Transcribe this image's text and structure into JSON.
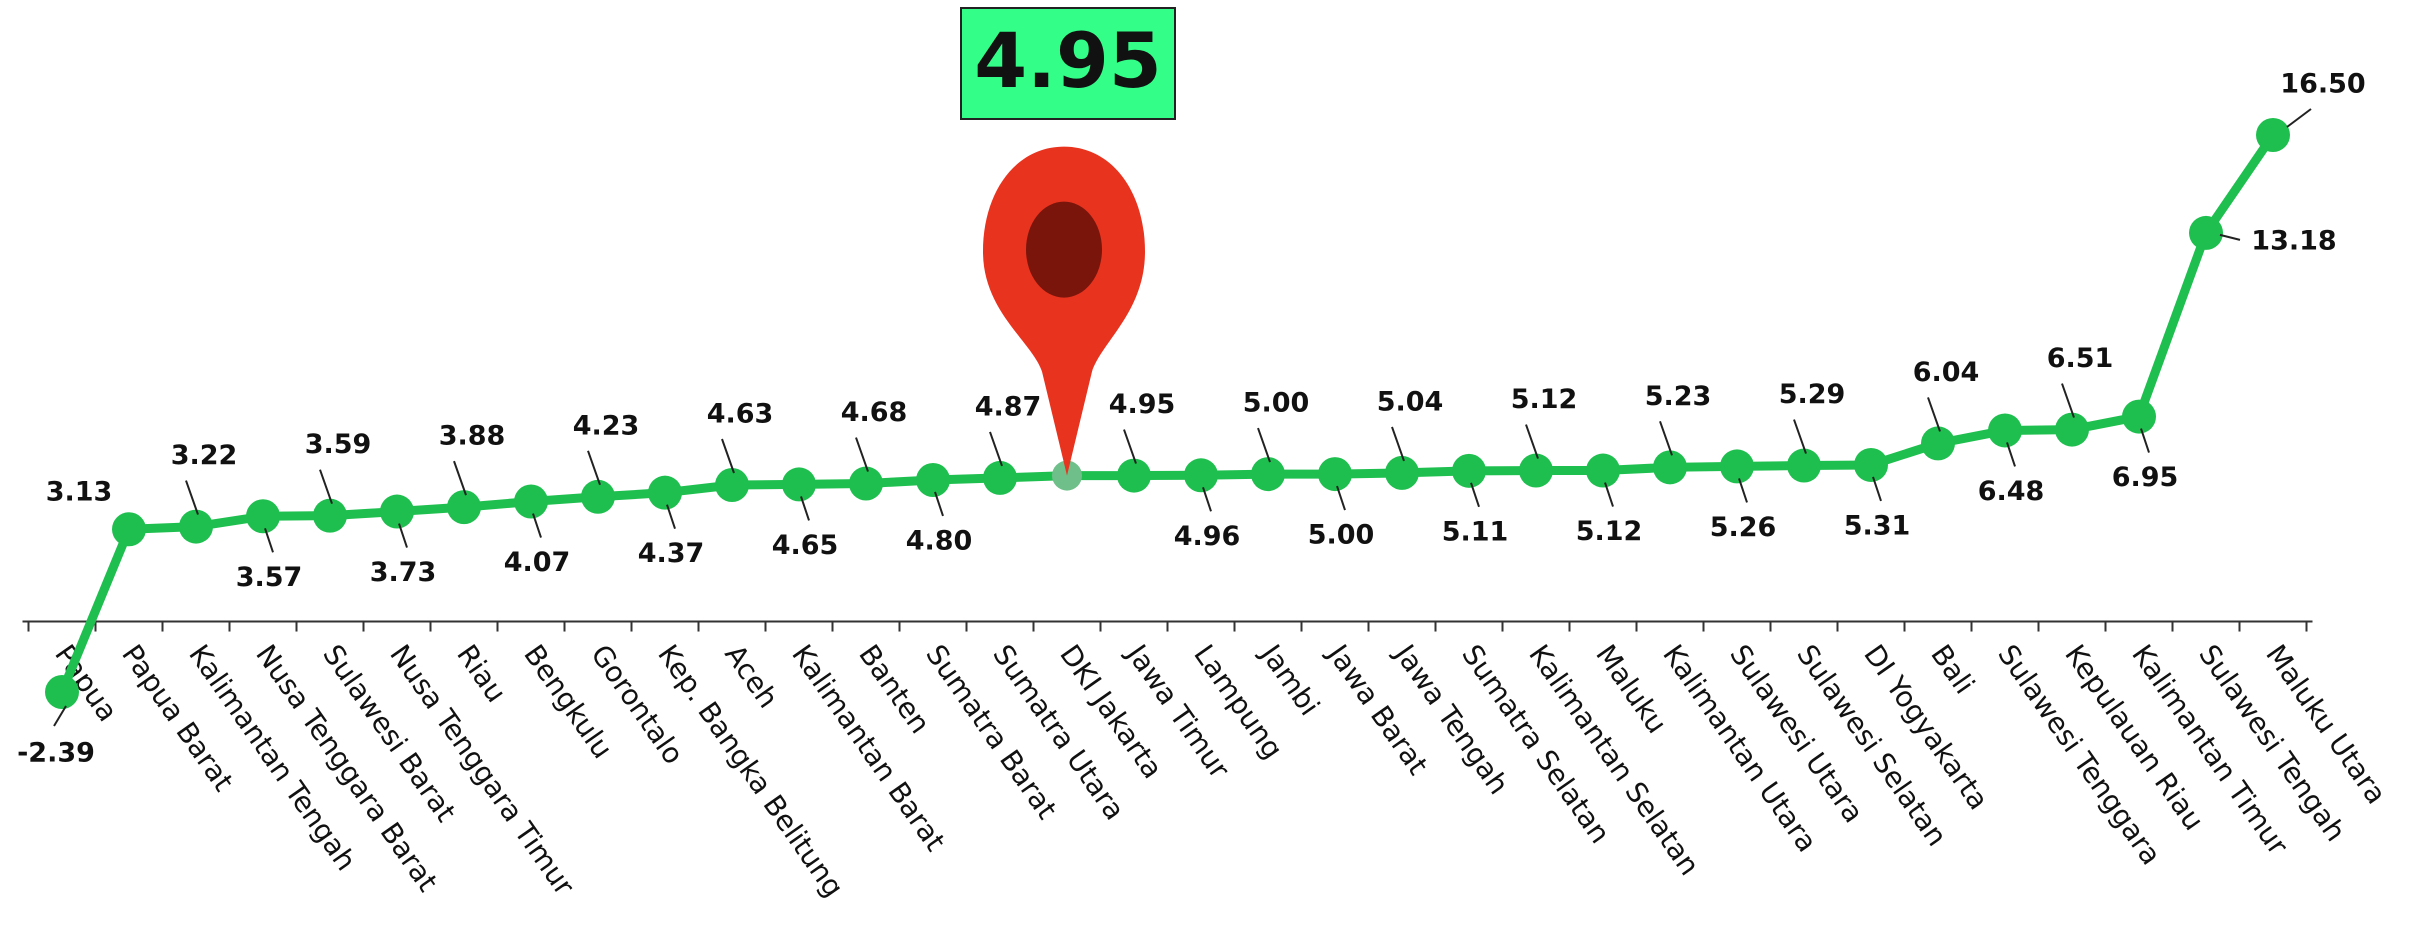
{
  "chart_data": {
    "type": "line",
    "categories": [
      "Papua",
      "Papua Barat",
      "Kalimantan Tengah",
      "Nusa Tenggara Barat",
      "Sulawesi Barat",
      "Nusa Tenggara Timur",
      "Riau",
      "Bengkulu",
      "Gorontalo",
      "Kep. Bangka Belitung",
      "Aceh",
      "Kalimantan Barat",
      "Banten",
      "Sumatra Barat",
      "Sumatra Utara",
      "DKI Jakarta",
      "Jawa Timur",
      "Lampung",
      "Jambi",
      "Jawa Barat",
      "Jawa Tengah",
      "Sumatra Selatan",
      "Kalimantan Selatan",
      "Maluku",
      "Kalimantan Utara",
      "Sulawesi Utara",
      "Sulawesi Selatan",
      "DI Yogyakarta",
      "Bali",
      "Sulawesi Tenggara",
      "Kepulauan Riau",
      "Kalimantan Timur",
      "Sulawesi Tengah",
      "Maluku Utara"
    ],
    "values": [
      -2.39,
      3.13,
      3.22,
      3.57,
      3.59,
      3.73,
      3.88,
      4.07,
      4.23,
      4.37,
      4.63,
      4.65,
      4.68,
      4.8,
      4.87,
      4.95,
      4.95,
      4.96,
      5.0,
      5.0,
      5.04,
      5.11,
      5.12,
      5.12,
      5.23,
      5.26,
      5.29,
      5.31,
      6.04,
      6.48,
      6.51,
      6.95,
      13.18,
      16.5
    ],
    "value_labels": [
      "-2.39",
      "3.13",
      "3.22",
      "3.57",
      "3.59",
      "3.73",
      "3.88",
      "4.07",
      "4.23",
      "4.37",
      "4.63",
      "4.65",
      "4.68",
      "4.80",
      "4.87",
      "4.95",
      "4.95",
      "4.96",
      "5.00",
      "5.00",
      "5.04",
      "5.11",
      "5.12",
      "5.12",
      "5.23",
      "5.26",
      "5.29",
      "5.31",
      "6.04",
      "6.48",
      "6.51",
      "6.95",
      "13.18",
      "16.50"
    ],
    "color": "#1fbf4f",
    "highlight_index": 15
  }
}
